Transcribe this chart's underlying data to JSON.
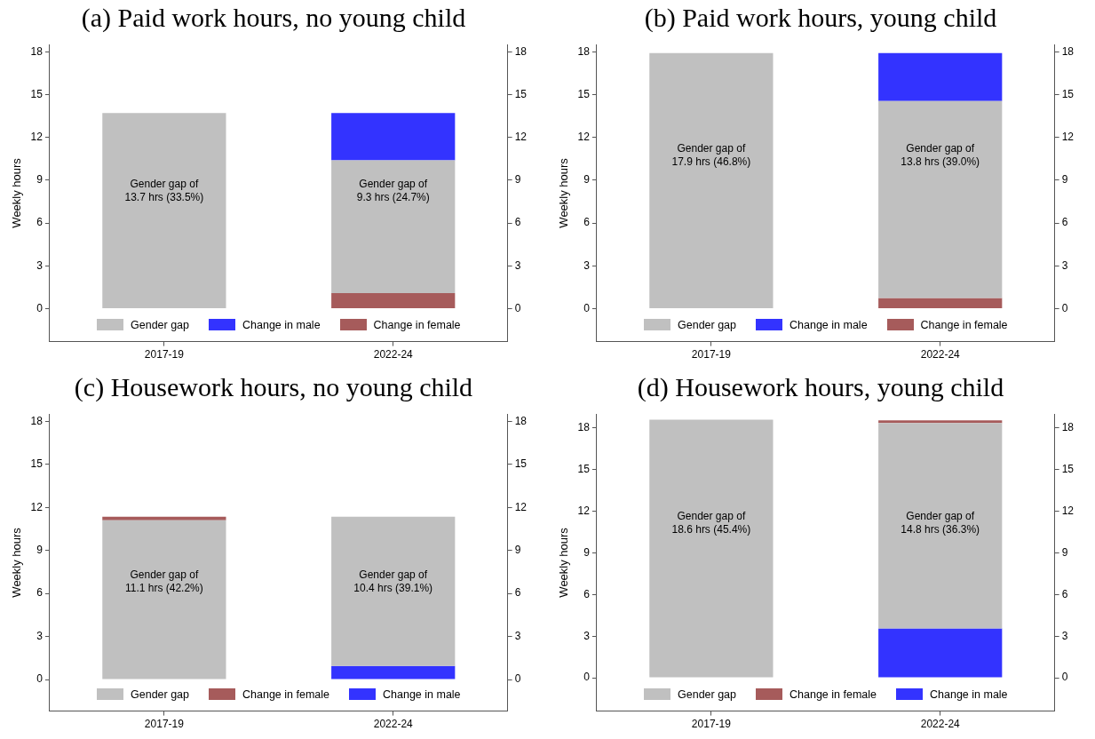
{
  "chart_data": [
    {
      "type": "bar",
      "title": "(a) Paid work hours, no young child",
      "ylabel": "Weekly hours",
      "categories": [
        "2017-19",
        "2022-24"
      ],
      "series": [
        {
          "name": "Gender gap",
          "color": "#c0c0c0",
          "values": [
            13.7,
            9.3
          ],
          "base": [
            0,
            1.1
          ]
        },
        {
          "name": "Change in male",
          "color": "#3333ff",
          "values": [
            null,
            3.3
          ],
          "base": [
            null,
            10.4
          ]
        },
        {
          "name": "Change in female",
          "color": "#a65b5b",
          "values": [
            null,
            1.1
          ],
          "base": [
            null,
            0
          ]
        }
      ],
      "ylim": [
        -2.3,
        18.5
      ],
      "yticks": [
        0,
        3,
        6,
        9,
        12,
        15,
        18
      ],
      "y2lim": [
        -2.3,
        18.5
      ],
      "y2ticks": [
        0,
        3,
        6,
        9,
        12,
        15,
        18
      ],
      "annotations": [
        "Gender gap of\n13.7 hrs (33.5%)",
        "Gender gap of\n9.3 hrs (24.7%)"
      ],
      "legend": "bottom"
    },
    {
      "type": "bar",
      "title": "(b) Paid work hours, young child",
      "ylabel": "Weekly hours",
      "categories": [
        "2017-19",
        "2022-24"
      ],
      "series": [
        {
          "name": "Gender gap",
          "color": "#c0c0c0",
          "values": [
            17.9,
            13.8
          ],
          "base": [
            0,
            0.75
          ]
        },
        {
          "name": "Change in male",
          "color": "#3333ff",
          "values": [
            null,
            3.35
          ],
          "base": [
            null,
            14.55
          ]
        },
        {
          "name": "Change in female",
          "color": "#a65b5b",
          "values": [
            null,
            0.75
          ],
          "base": [
            null,
            0
          ]
        }
      ],
      "ylim": [
        -2.3,
        18.5
      ],
      "yticks": [
        0,
        3,
        6,
        9,
        12,
        15,
        18
      ],
      "y2lim": [
        -2.3,
        18.5
      ],
      "y2ticks": [
        0,
        3,
        6,
        9,
        12,
        15,
        18
      ],
      "annotations": [
        "Gender gap of\n17.9 hrs (46.8%)",
        "Gender gap of\n13.8 hrs (39.0%)"
      ],
      "legend": "bottom"
    },
    {
      "type": "bar",
      "title": "(c) Housework hours, no young child",
      "ylabel": "Weekly hours",
      "categories": [
        "2017-19",
        "2022-24"
      ],
      "series": [
        {
          "name": "Gender gap",
          "color": "#c0c0c0",
          "values": [
            11.1,
            10.4
          ],
          "base": [
            0,
            0.95
          ]
        },
        {
          "name": "Change in female",
          "color": "#a65b5b",
          "values": [
            0.25,
            null
          ],
          "base": [
            11.1,
            null
          ]
        },
        {
          "name": "Change in male",
          "color": "#3333ff",
          "values": [
            null,
            0.95
          ],
          "base": [
            null,
            0
          ]
        }
      ],
      "ylim": [
        -2.2,
        18.5
      ],
      "yticks": [
        0,
        3,
        6,
        9,
        12,
        15,
        18
      ],
      "y2lim": [
        -2.2,
        18.5
      ],
      "y2ticks": [
        0,
        3,
        6,
        9,
        12,
        15,
        18
      ],
      "annotations": [
        "Gender gap of\n11.1 hrs (42.2%)",
        "Gender gap of\n10.4 hrs (39.1%)"
      ],
      "legend": "bottom"
    },
    {
      "type": "bar",
      "title": "(d) Housework hours, young child",
      "ylabel": "Weekly hours",
      "categories": [
        "2017-19",
        "2022-24"
      ],
      "series": [
        {
          "name": "Gender gap",
          "color": "#c0c0c0",
          "values": [
            18.6,
            14.8
          ],
          "base": [
            0,
            3.55
          ]
        },
        {
          "name": "Change in female",
          "color": "#a65b5b",
          "values": [
            null,
            0.2
          ],
          "base": [
            null,
            18.35
          ]
        },
        {
          "name": "Change in male",
          "color": "#3333ff",
          "values": [
            null,
            3.55
          ],
          "base": [
            null,
            0
          ]
        }
      ],
      "ylim": [
        -2.4,
        19.0
      ],
      "yticks": [
        0,
        3,
        6,
        9,
        12,
        15,
        18
      ],
      "y2lim": [
        -2.4,
        19.0
      ],
      "y2ticks": [
        0,
        3,
        6,
        9,
        12,
        15,
        18
      ],
      "annotations": [
        "Gender gap of\n18.6 hrs (45.4%)",
        "Gender gap of\n14.8 hrs (36.3%)"
      ],
      "legend": "bottom"
    }
  ]
}
